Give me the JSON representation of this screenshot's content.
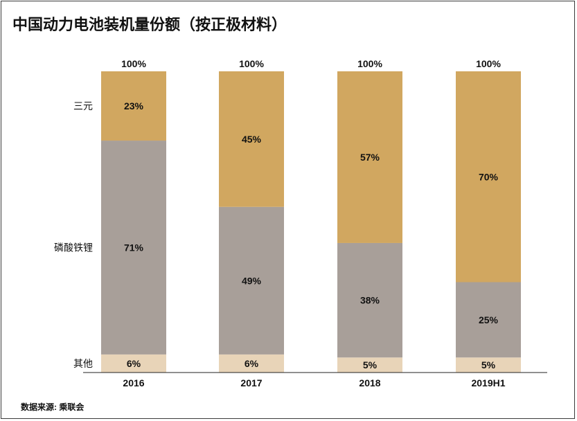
{
  "title": "中国动力电池装机量份额（按正极材料）",
  "source": "数据来源: 乘联会",
  "chart_data": {
    "type": "bar",
    "stacked": true,
    "categories": [
      "2016",
      "2017",
      "2018",
      "2019H1"
    ],
    "series": [
      {
        "name": "其他",
        "values": [
          6,
          6,
          5,
          5
        ],
        "labels": [
          "6%",
          "6%",
          "5%",
          "5%"
        ],
        "color": "#e8d4b8"
      },
      {
        "name": "磷酸铁锂",
        "values": [
          71,
          49,
          38,
          25
        ],
        "labels": [
          "71%",
          "49%",
          "38%",
          "25%"
        ],
        "color": "#a89f99"
      },
      {
        "name": "三元",
        "values": [
          23,
          45,
          57,
          70
        ],
        "labels": [
          "23%",
          "45%",
          "57%",
          "70%"
        ],
        "color": "#d1a760"
      }
    ],
    "totals": [
      "100%",
      "100%",
      "100%",
      "100%"
    ],
    "ylim": [
      0,
      100
    ],
    "legend": "left, inline labels",
    "grid": false
  }
}
